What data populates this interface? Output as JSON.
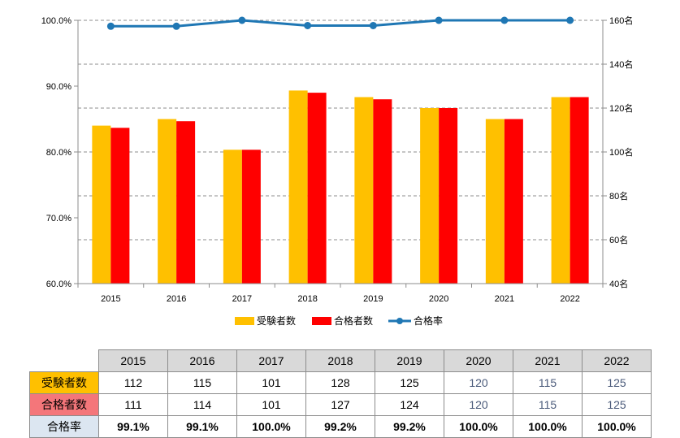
{
  "colors": {
    "applicants": "#FFC000",
    "passers": "#FF0000",
    "rate": "#1F77B4",
    "rate_header_bg": "#DCE6F1"
  },
  "chart_data": {
    "type": "bar",
    "categories": [
      "2015",
      "2016",
      "2017",
      "2018",
      "2019",
      "2020",
      "2021",
      "2022"
    ],
    "series": [
      {
        "name": "受験者数",
        "type": "bar",
        "axis": "right",
        "values": [
          112,
          115,
          101,
          128,
          125,
          120,
          115,
          125
        ]
      },
      {
        "name": "合格者数",
        "type": "bar",
        "axis": "right",
        "values": [
          111,
          114,
          101,
          127,
          124,
          120,
          115,
          125
        ]
      },
      {
        "name": "合格率",
        "type": "line",
        "axis": "left",
        "values": [
          99.1,
          99.1,
          100.0,
          99.2,
          99.2,
          100.0,
          100.0,
          100.0
        ]
      }
    ],
    "left_axis": {
      "min": 60,
      "max": 100,
      "ticks": [
        "60.0%",
        "70.0%",
        "80.0%",
        "90.0%",
        "100.0%"
      ]
    },
    "right_axis": {
      "min": 40,
      "max": 160,
      "ticks": [
        "40名",
        "60名",
        "80名",
        "100名",
        "120名",
        "140名",
        "160名"
      ]
    },
    "grid": true,
    "legend_position": "bottom"
  },
  "table": {
    "rows": [
      {
        "label": "受験者数",
        "values": [
          "112",
          "115",
          "101",
          "128",
          "125",
          "120",
          "115",
          "125"
        ]
      },
      {
        "label": "合格者数",
        "values": [
          "111",
          "114",
          "101",
          "127",
          "124",
          "120",
          "115",
          "125"
        ]
      },
      {
        "label": "合格率",
        "values": [
          "99.1%",
          "99.1%",
          "100.0%",
          "99.2%",
          "99.2%",
          "100.0%",
          "100.0%",
          "100.0%"
        ]
      }
    ]
  }
}
